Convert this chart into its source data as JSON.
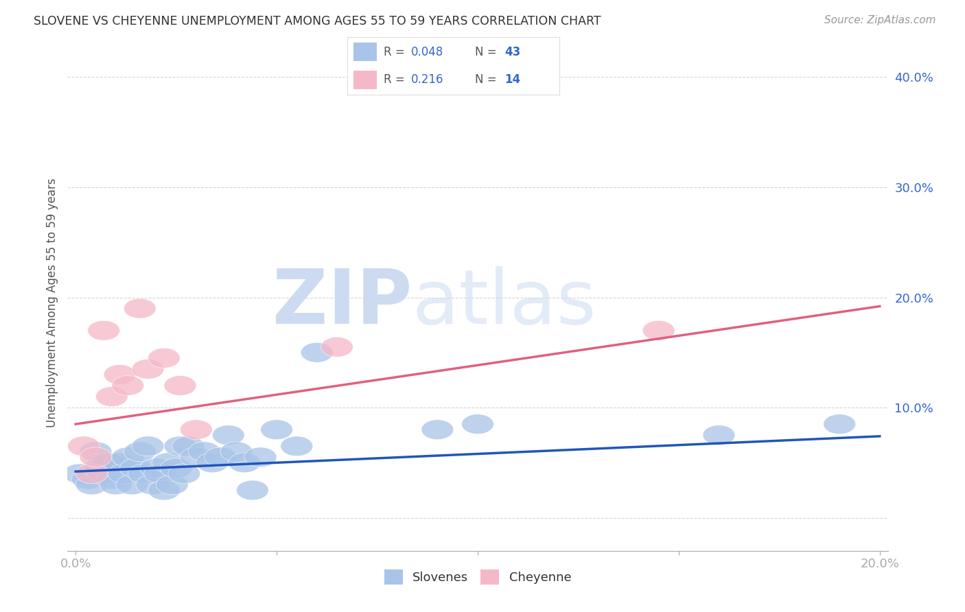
{
  "title": "SLOVENE VS CHEYENNE UNEMPLOYMENT AMONG AGES 55 TO 59 YEARS CORRELATION CHART",
  "source": "Source: ZipAtlas.com",
  "ylabel": "Unemployment Among Ages 55 to 59 years",
  "xlim": [
    -0.002,
    0.202
  ],
  "ylim": [
    -0.03,
    0.42
  ],
  "xticks": [
    0.0,
    0.05,
    0.1,
    0.15,
    0.2
  ],
  "yticks": [
    0.0,
    0.1,
    0.2,
    0.3,
    0.4
  ],
  "slovene_color": "#a8c4e8",
  "cheyenne_color": "#f5b8c8",
  "slovene_line_color": "#2255bb",
  "cheyenne_line_color": "#e06080",
  "slovene_R": 0.048,
  "slovene_N": 43,
  "cheyenne_R": 0.216,
  "cheyenne_N": 14,
  "background_color": "#ffffff",
  "grid_color": "#cccccc",
  "slovene_x": [
    0.001,
    0.003,
    0.004,
    0.005,
    0.006,
    0.007,
    0.008,
    0.009,
    0.01,
    0.011,
    0.012,
    0.013,
    0.014,
    0.015,
    0.016,
    0.017,
    0.018,
    0.019,
    0.02,
    0.021,
    0.022,
    0.023,
    0.024,
    0.025,
    0.026,
    0.027,
    0.028,
    0.03,
    0.032,
    0.034,
    0.036,
    0.038,
    0.04,
    0.042,
    0.044,
    0.046,
    0.05,
    0.055,
    0.06,
    0.09,
    0.1,
    0.16,
    0.19
  ],
  "slovene_y": [
    0.04,
    0.035,
    0.03,
    0.06,
    0.045,
    0.04,
    0.05,
    0.035,
    0.03,
    0.05,
    0.04,
    0.055,
    0.03,
    0.045,
    0.06,
    0.04,
    0.065,
    0.03,
    0.045,
    0.04,
    0.025,
    0.05,
    0.03,
    0.045,
    0.065,
    0.04,
    0.065,
    0.055,
    0.06,
    0.05,
    0.055,
    0.075,
    0.06,
    0.05,
    0.025,
    0.055,
    0.08,
    0.065,
    0.15,
    0.08,
    0.085,
    0.075,
    0.085
  ],
  "cheyenne_x": [
    0.002,
    0.004,
    0.005,
    0.007,
    0.009,
    0.011,
    0.013,
    0.016,
    0.018,
    0.022,
    0.026,
    0.03,
    0.065,
    0.145
  ],
  "cheyenne_y": [
    0.065,
    0.04,
    0.055,
    0.17,
    0.11,
    0.13,
    0.12,
    0.19,
    0.135,
    0.145,
    0.12,
    0.08,
    0.155,
    0.17
  ],
  "slovene_line_x0": 0.0,
  "slovene_line_y0": 0.042,
  "slovene_line_x1": 0.2,
  "slovene_line_y1": 0.074,
  "cheyenne_line_x0": 0.0,
  "cheyenne_line_y0": 0.085,
  "cheyenne_line_x1": 0.2,
  "cheyenne_line_y1": 0.192
}
